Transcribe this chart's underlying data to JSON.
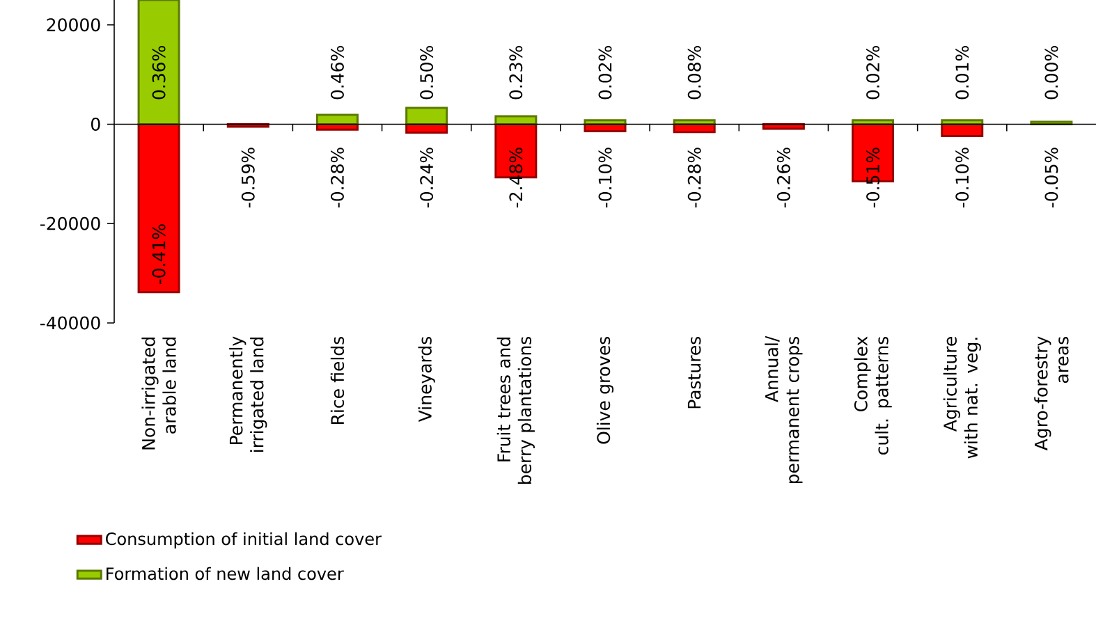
{
  "chart_data": {
    "type": "bar",
    "stacked": true,
    "categories": [
      "Non-irrigated arable land",
      "Permanently irrigated land",
      "Rice fields",
      "Vineyards",
      "Fruit trees and berry plantations",
      "Olive groves",
      "Pastures",
      "Annual/ permanent crops",
      "Complex cult. patterns",
      "Agriculture with nat. veg.",
      "Agro-forestry areas"
    ],
    "series": [
      {
        "name": "Consumption of initial land cover",
        "color": "#ff0000",
        "values": [
          -33800,
          -500,
          -1100,
          -1700,
          -10700,
          -1400,
          -1600,
          -900,
          -11500,
          -2400,
          null
        ]
      },
      {
        "name": "Formation of new land cover",
        "color": "#99cc00",
        "values": [
          25000,
          null,
          1900,
          3300,
          1600,
          800,
          800,
          null,
          800,
          800,
          500
        ]
      }
    ],
    "annotations": [
      {
        "text": "-0.41%",
        "x": "Non-irrigated arable land",
        "y": -33800
      },
      {
        "text": "-0.59%",
        "x": "Permanently irrigated land",
        "y": -500
      },
      {
        "text": "-0.28%",
        "x": "Rice fields",
        "y": -1100
      },
      {
        "text": "-0.24%",
        "x": "Vineyards",
        "y": -1700
      },
      {
        "text": "-2.48%",
        "x": "Fruit trees and berry plantations",
        "y": -10700
      },
      {
        "text": "-0.10%",
        "x": "Olive groves",
        "y": -1400
      },
      {
        "text": "-0.28%",
        "x": "Pastures",
        "y": -1600
      },
      {
        "text": "-0.26%",
        "x": "Annual/ permanent crops",
        "y": -900
      },
      {
        "text": "-0.51%",
        "x": "Complex cult. patterns",
        "y": -11500
      },
      {
        "text": "-0.10%",
        "x": "Agriculture with nat. veg.",
        "y": -2400
      },
      {
        "text": "-0.05%",
        "x": "Agro-forestry areas",
        "y": -200
      },
      {
        "text": "0.36%",
        "x": "Non-irrigated arable land",
        "y": 25000
      },
      {
        "text": "0.46%",
        "x": "Rice fields",
        "y": 1900
      },
      {
        "text": "0.50%",
        "x": "Vineyards",
        "y": 3300
      },
      {
        "text": "0.23%",
        "x": "Fruit trees and berry plantations",
        "y": 1600
      },
      {
        "text": "0.02%",
        "x": "Olive groves",
        "y": 800
      },
      {
        "text": "0.08%",
        "x": "Pastures",
        "y": 800
      },
      {
        "text": "0.02%",
        "x": "Complex cult. patterns",
        "y": 800
      },
      {
        "text": "0.01%",
        "x": "Agriculture with nat. veg.",
        "y": 800
      },
      {
        "text": "0.00%",
        "x": "Agro-forestry areas",
        "y": 500
      }
    ],
    "ylim": [
      -40000,
      25000
    ],
    "yticks": [
      -40000,
      -20000,
      0,
      20000
    ],
    "legend": "bottom left"
  }
}
